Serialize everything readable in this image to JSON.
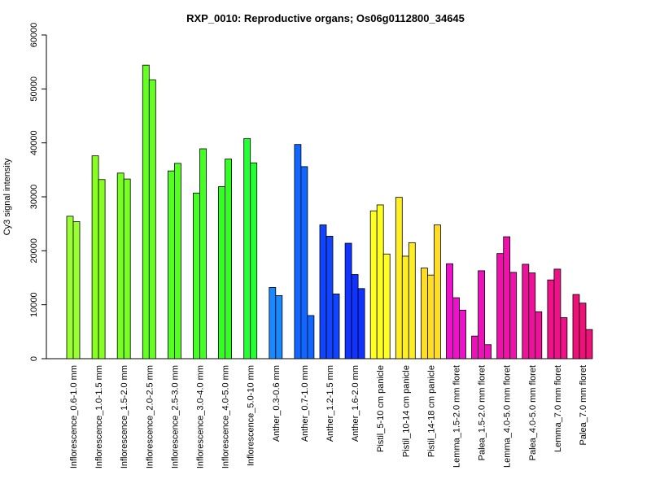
{
  "chart_data": {
    "type": "bar",
    "title": "RXP_0010: Reproductive organs; Os06g0112800_34645",
    "xlabel": "",
    "ylabel": "Cy3 signal intensity",
    "ylim": [
      0,
      60000
    ],
    "yticks": [
      0,
      10000,
      20000,
      30000,
      40000,
      50000,
      60000
    ],
    "grid": false,
    "legend": "none",
    "groups": [
      {
        "label": "Inflorescence_0.6-1.0 mm",
        "color": "#99ff33",
        "values": [
          26400,
          25400
        ]
      },
      {
        "label": "Inflorescence_1.0-1.5 mm",
        "color": "#88ff22",
        "values": [
          37600,
          33200
        ]
      },
      {
        "label": "Inflorescence_1.5-2.0 mm",
        "color": "#77ff22",
        "values": [
          34400,
          33300
        ]
      },
      {
        "label": "Inflorescence_2.0-2.5 mm",
        "color": "#66ff22",
        "values": [
          54400,
          51700
        ]
      },
      {
        "label": "Inflorescence_2.5-3.0 mm",
        "color": "#55ff22",
        "values": [
          34800,
          36200
        ]
      },
      {
        "label": "Inflorescence_3.0-4.0 mm",
        "color": "#44ff22",
        "values": [
          30700,
          38900
        ]
      },
      {
        "label": "Inflorescence_4.0-5.0 mm",
        "color": "#33ff22",
        "values": [
          31900,
          37000
        ]
      },
      {
        "label": "Inflorescence_5.0-10 mm",
        "color": "#22ff33",
        "values": [
          40800,
          36300
        ]
      },
      {
        "label": "Anther_0.3-0.6 mm",
        "color": "#1a88ff",
        "values": [
          13200,
          11700
        ]
      },
      {
        "label": "Anther_0.7-1.0 mm",
        "color": "#1166ff",
        "values": [
          39700,
          35600,
          8000
        ]
      },
      {
        "label": "Anther_1.2-1.5 mm",
        "color": "#1144ff",
        "values": [
          24800,
          22700,
          12000
        ]
      },
      {
        "label": "Anther_1.6-2.0 mm",
        "color": "#1133ff",
        "values": [
          21400,
          15600,
          13000
        ]
      },
      {
        "label": "Pistil_5-10 cm panicle",
        "color": "#ffff22",
        "values": [
          27400,
          28500,
          19400
        ]
      },
      {
        "label": "Pistil_10-14 cm panicle",
        "color": "#ffee22",
        "values": [
          29900,
          19000,
          21500
        ]
      },
      {
        "label": "Pistil_14-18 cm panicle",
        "color": "#ffdd22",
        "values": [
          16800,
          15500,
          24800
        ]
      },
      {
        "label": "Lemma_1.5-2.0 mm floret",
        "color": "#ee11cc",
        "values": [
          17600,
          11300,
          9000
        ]
      },
      {
        "label": "Palea_1.5-2.0 mm floret",
        "color": "#ee11bb",
        "values": [
          4200,
          16300,
          2600
        ]
      },
      {
        "label": "Lemma_4.0-5.0 mm floret",
        "color": "#ee11aa",
        "values": [
          19500,
          22600,
          16000
        ]
      },
      {
        "label": "Palea_4.0-5.0 mm floret",
        "color": "#ee1199",
        "values": [
          17500,
          15900,
          8700
        ]
      },
      {
        "label": "Lemma_7.0 mm floret",
        "color": "#ee1188",
        "values": [
          14600,
          16600,
          7600
        ]
      },
      {
        "label": "Palea_7.0 mm floret",
        "color": "#ee1177",
        "values": [
          11900,
          10300,
          5400
        ]
      }
    ]
  }
}
